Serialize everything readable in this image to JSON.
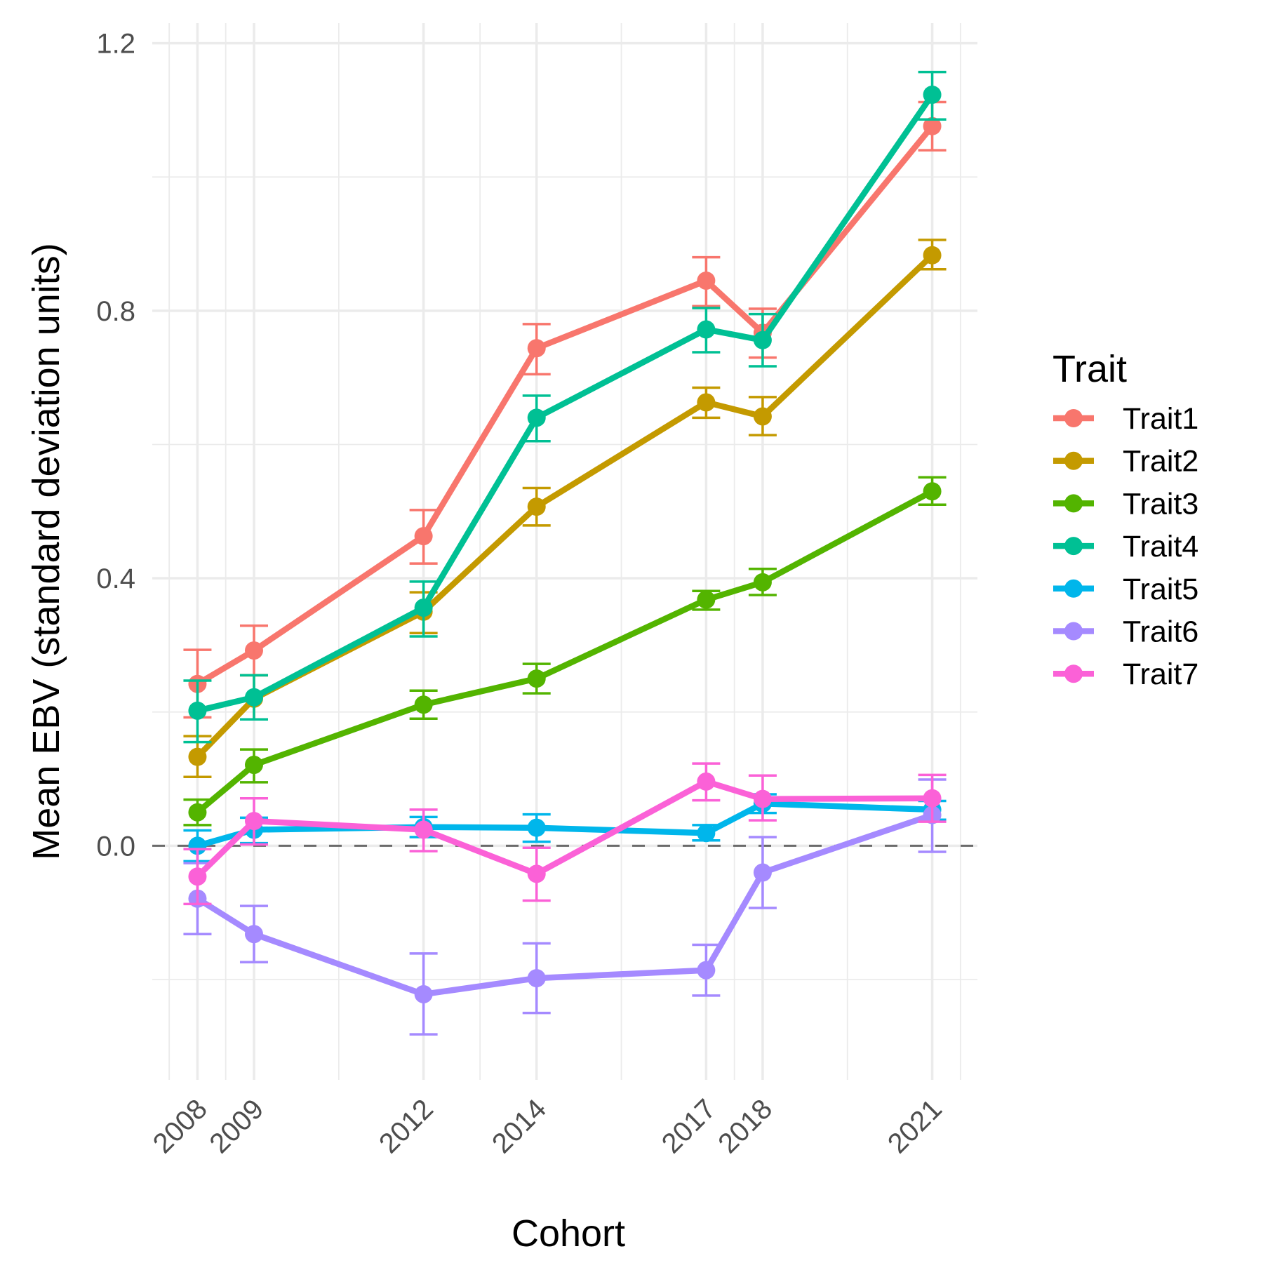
{
  "chart_data": {
    "type": "line",
    "title": "",
    "xlabel": "Cohort",
    "ylabel": "Mean EBV (standard deviation units)",
    "x": [
      2008,
      2009,
      2012,
      2014,
      2017,
      2018,
      2021
    ],
    "x_tick_labels": [
      "2008",
      "2009",
      "2012",
      "2014",
      "2017",
      "2018",
      "2021"
    ],
    "xlim": [
      2007.2,
      2021.8
    ],
    "ylim": [
      -0.35,
      1.23
    ],
    "y_ticks": [
      0.0,
      0.4,
      0.8,
      1.2
    ],
    "y_tick_labels": [
      "0.0",
      "0.4",
      "0.8",
      "1.2"
    ],
    "y_minor_ticks": [
      -0.2,
      0.2,
      0.6,
      1.0
    ],
    "reference_line": {
      "y": 0,
      "style": "dashed",
      "color": "#666666"
    },
    "grid": true,
    "error_bars": true,
    "legend": {
      "title": "Trait",
      "position": "right"
    },
    "series": [
      {
        "name": "Trait1",
        "color": "#F8766D",
        "values": [
          0.242,
          0.292,
          0.463,
          0.744,
          0.845,
          0.767,
          1.076
        ],
        "lower": [
          0.192,
          0.255,
          0.422,
          0.705,
          0.807,
          0.73,
          1.04
        ],
        "upper": [
          0.293,
          0.329,
          0.502,
          0.78,
          0.88,
          0.803,
          1.112
        ]
      },
      {
        "name": "Trait2",
        "color": "#C49A00",
        "values": [
          0.133,
          0.22,
          0.35,
          0.507,
          0.663,
          0.642,
          0.883
        ],
        "lower": [
          0.103,
          0.189,
          0.318,
          0.479,
          0.64,
          0.614,
          0.862
        ],
        "upper": [
          0.164,
          0.255,
          0.379,
          0.535,
          0.685,
          0.671,
          0.906
        ]
      },
      {
        "name": "Trait3",
        "color": "#53B400",
        "values": [
          0.05,
          0.121,
          0.211,
          0.25,
          0.368,
          0.394,
          0.53
        ],
        "lower": [
          0.031,
          0.095,
          0.19,
          0.228,
          0.353,
          0.375,
          0.51
        ],
        "upper": [
          0.069,
          0.144,
          0.232,
          0.272,
          0.381,
          0.414,
          0.551
        ]
      },
      {
        "name": "Trait4",
        "color": "#00C094",
        "values": [
          0.202,
          0.222,
          0.356,
          0.64,
          0.772,
          0.756,
          1.123
        ],
        "lower": [
          0.155,
          0.189,
          0.313,
          0.605,
          0.738,
          0.717,
          1.086
        ],
        "upper": [
          0.247,
          0.255,
          0.395,
          0.673,
          0.804,
          0.795,
          1.157
        ]
      },
      {
        "name": "Trait5",
        "color": "#00B6EB",
        "values": [
          0.0,
          0.024,
          0.028,
          0.027,
          0.019,
          0.063,
          0.054
        ],
        "lower": [
          -0.023,
          0.004,
          0.013,
          0.006,
          0.008,
          0.049,
          0.039
        ],
        "upper": [
          0.023,
          0.042,
          0.043,
          0.047,
          0.031,
          0.077,
          0.067
        ]
      },
      {
        "name": "Trait6",
        "color": "#A58AFF",
        "values": [
          -0.079,
          -0.132,
          -0.222,
          -0.198,
          -0.186,
          -0.04,
          0.046
        ],
        "lower": [
          -0.132,
          -0.174,
          -0.282,
          -0.25,
          -0.224,
          -0.093,
          -0.009
        ],
        "upper": [
          -0.026,
          -0.09,
          -0.161,
          -0.146,
          -0.148,
          0.013,
          0.099
        ]
      },
      {
        "name": "Trait7",
        "color": "#FB61D7",
        "values": [
          -0.046,
          0.037,
          0.024,
          -0.042,
          0.096,
          0.07,
          0.071
        ],
        "lower": [
          -0.087,
          0.002,
          -0.008,
          -0.082,
          0.068,
          0.038,
          0.036
        ],
        "upper": [
          -0.005,
          0.071,
          0.054,
          -0.003,
          0.123,
          0.105,
          0.106
        ]
      }
    ]
  }
}
